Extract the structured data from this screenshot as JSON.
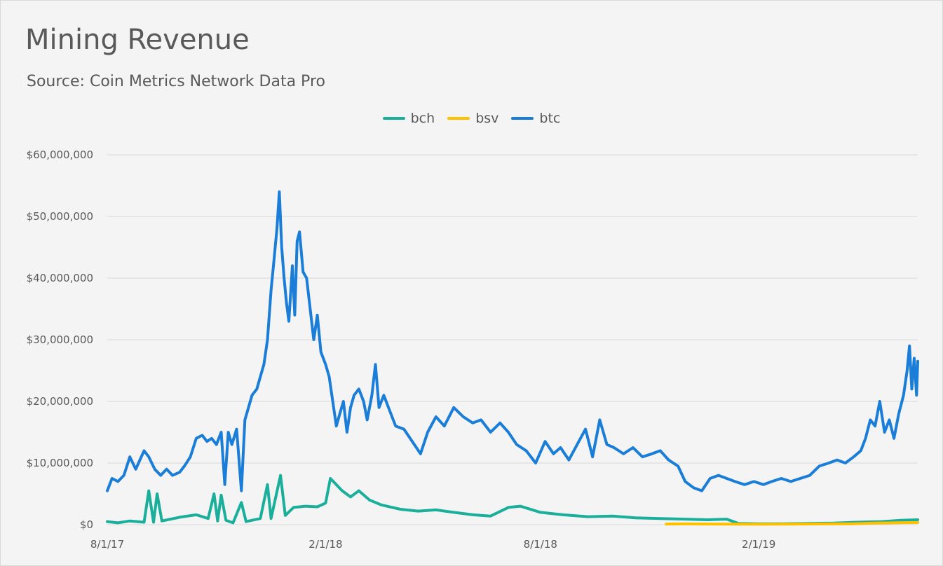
{
  "chart_data": {
    "type": "line",
    "title": "Mining Revenue",
    "subtitle": "Source:  Coin Metrics Network Data Pro",
    "xlabel": "",
    "ylabel": "",
    "x_range": [
      "2017-08-01",
      "2019-06-15"
    ],
    "ylim": [
      0,
      60000000
    ],
    "y_ticks": [
      0,
      10000000,
      20000000,
      30000000,
      40000000,
      50000000,
      60000000
    ],
    "y_tick_labels": [
      "$0",
      "$10,000,000",
      "$20,000,000",
      "$30,000,000",
      "$40,000,000",
      "$50,000,000",
      "$60,000,000"
    ],
    "x_ticks": [
      "2017-08-01",
      "2018-02-01",
      "2018-08-01",
      "2019-02-01"
    ],
    "x_tick_labels": [
      "8/1/17",
      "2/1/18",
      "8/1/18",
      "2/1/19"
    ],
    "grid": true,
    "legend_position": "top-center",
    "series": [
      {
        "name": "bch",
        "color": "#1aaf9b",
        "points": [
          [
            "2017-08-01",
            500000
          ],
          [
            "2017-08-10",
            300000
          ],
          [
            "2017-08-20",
            600000
          ],
          [
            "2017-09-01",
            400000
          ],
          [
            "2017-09-05",
            5500000
          ],
          [
            "2017-09-09",
            400000
          ],
          [
            "2017-09-12",
            5000000
          ],
          [
            "2017-09-16",
            600000
          ],
          [
            "2017-10-01",
            1200000
          ],
          [
            "2017-10-15",
            1600000
          ],
          [
            "2017-10-25",
            1000000
          ],
          [
            "2017-10-30",
            5000000
          ],
          [
            "2017-11-02",
            600000
          ],
          [
            "2017-11-05",
            4800000
          ],
          [
            "2017-11-09",
            700000
          ],
          [
            "2017-11-15",
            300000
          ],
          [
            "2017-11-22",
            3600000
          ],
          [
            "2017-11-26",
            500000
          ],
          [
            "2017-12-08",
            1000000
          ],
          [
            "2017-12-14",
            6500000
          ],
          [
            "2017-12-17",
            1000000
          ],
          [
            "2017-12-25",
            8000000
          ],
          [
            "2017-12-29",
            1500000
          ],
          [
            "2018-01-05",
            2800000
          ],
          [
            "2018-01-15",
            3000000
          ],
          [
            "2018-01-25",
            2900000
          ],
          [
            "2018-02-01",
            3500000
          ],
          [
            "2018-02-05",
            7500000
          ],
          [
            "2018-02-15",
            5500000
          ],
          [
            "2018-02-22",
            4500000
          ],
          [
            "2018-03-01",
            5500000
          ],
          [
            "2018-03-10",
            4000000
          ],
          [
            "2018-03-20",
            3200000
          ],
          [
            "2018-04-05",
            2500000
          ],
          [
            "2018-04-20",
            2200000
          ],
          [
            "2018-05-05",
            2400000
          ],
          [
            "2018-05-20",
            2000000
          ],
          [
            "2018-06-05",
            1600000
          ],
          [
            "2018-06-20",
            1400000
          ],
          [
            "2018-07-05",
            2800000
          ],
          [
            "2018-07-15",
            3000000
          ],
          [
            "2018-08-01",
            2000000
          ],
          [
            "2018-08-20",
            1600000
          ],
          [
            "2018-09-10",
            1300000
          ],
          [
            "2018-10-01",
            1400000
          ],
          [
            "2018-10-20",
            1100000
          ],
          [
            "2018-11-10",
            1000000
          ],
          [
            "2018-12-01",
            900000
          ],
          [
            "2018-12-20",
            800000
          ],
          [
            "2019-01-05",
            900000
          ],
          [
            "2019-01-15",
            200000
          ],
          [
            "2019-02-01",
            150000
          ],
          [
            "2019-02-20",
            150000
          ],
          [
            "2019-03-15",
            200000
          ],
          [
            "2019-04-05",
            250000
          ],
          [
            "2019-04-25",
            400000
          ],
          [
            "2019-05-15",
            500000
          ],
          [
            "2019-06-01",
            700000
          ],
          [
            "2019-06-15",
            800000
          ]
        ]
      },
      {
        "name": "bsv",
        "color": "#ffc000",
        "points": [
          [
            "2018-11-15",
            100000
          ],
          [
            "2018-12-01",
            120000
          ],
          [
            "2018-12-20",
            100000
          ],
          [
            "2019-01-10",
            80000
          ],
          [
            "2019-02-01",
            70000
          ],
          [
            "2019-02-20",
            80000
          ],
          [
            "2019-03-10",
            100000
          ],
          [
            "2019-04-01",
            120000
          ],
          [
            "2019-04-20",
            150000
          ],
          [
            "2019-05-10",
            250000
          ],
          [
            "2019-05-25",
            300000
          ],
          [
            "2019-06-15",
            350000
          ]
        ]
      },
      {
        "name": "btc",
        "color": "#1a7ed8",
        "points": [
          [
            "2017-08-01",
            5500000
          ],
          [
            "2017-08-05",
            7500000
          ],
          [
            "2017-08-10",
            7000000
          ],
          [
            "2017-08-15",
            8000000
          ],
          [
            "2017-08-20",
            11000000
          ],
          [
            "2017-08-25",
            9000000
          ],
          [
            "2017-09-01",
            12000000
          ],
          [
            "2017-09-05",
            11000000
          ],
          [
            "2017-09-10",
            9000000
          ],
          [
            "2017-09-15",
            8000000
          ],
          [
            "2017-09-20",
            9000000
          ],
          [
            "2017-09-25",
            8000000
          ],
          [
            "2017-10-01",
            8500000
          ],
          [
            "2017-10-05",
            9500000
          ],
          [
            "2017-10-10",
            11000000
          ],
          [
            "2017-10-15",
            14000000
          ],
          [
            "2017-10-20",
            14500000
          ],
          [
            "2017-10-24",
            13500000
          ],
          [
            "2017-10-28",
            14000000
          ],
          [
            "2017-11-01",
            13000000
          ],
          [
            "2017-11-05",
            15000000
          ],
          [
            "2017-11-08",
            6500000
          ],
          [
            "2017-11-11",
            15000000
          ],
          [
            "2017-11-14",
            13000000
          ],
          [
            "2017-11-18",
            15500000
          ],
          [
            "2017-11-22",
            5500000
          ],
          [
            "2017-11-25",
            17000000
          ],
          [
            "2017-11-28",
            19000000
          ],
          [
            "2017-12-01",
            21000000
          ],
          [
            "2017-12-05",
            22000000
          ],
          [
            "2017-12-08",
            24000000
          ],
          [
            "2017-12-11",
            26000000
          ],
          [
            "2017-12-14",
            30000000
          ],
          [
            "2017-12-17",
            38000000
          ],
          [
            "2017-12-19",
            42000000
          ],
          [
            "2017-12-22",
            48000000
          ],
          [
            "2017-12-24",
            54000000
          ],
          [
            "2017-12-26",
            45000000
          ],
          [
            "2017-12-28",
            40000000
          ],
          [
            "2017-12-30",
            36000000
          ],
          [
            "2018-01-01",
            33000000
          ],
          [
            "2018-01-04",
            42000000
          ],
          [
            "2018-01-06",
            34000000
          ],
          [
            "2018-01-08",
            46000000
          ],
          [
            "2018-01-10",
            47500000
          ],
          [
            "2018-01-13",
            41000000
          ],
          [
            "2018-01-16",
            40000000
          ],
          [
            "2018-01-19",
            35000000
          ],
          [
            "2018-01-22",
            30000000
          ],
          [
            "2018-01-25",
            34000000
          ],
          [
            "2018-01-28",
            28000000
          ],
          [
            "2018-02-01",
            26000000
          ],
          [
            "2018-02-04",
            24000000
          ],
          [
            "2018-02-07",
            20000000
          ],
          [
            "2018-02-10",
            16000000
          ],
          [
            "2018-02-13",
            18000000
          ],
          [
            "2018-02-16",
            20000000
          ],
          [
            "2018-02-19",
            15000000
          ],
          [
            "2018-02-22",
            19000000
          ],
          [
            "2018-02-25",
            21000000
          ],
          [
            "2018-03-01",
            22000000
          ],
          [
            "2018-03-05",
            20000000
          ],
          [
            "2018-03-08",
            17000000
          ],
          [
            "2018-03-12",
            21000000
          ],
          [
            "2018-03-15",
            26000000
          ],
          [
            "2018-03-18",
            19000000
          ],
          [
            "2018-03-22",
            21000000
          ],
          [
            "2018-03-26",
            19000000
          ],
          [
            "2018-04-01",
            16000000
          ],
          [
            "2018-04-08",
            15500000
          ],
          [
            "2018-04-15",
            13500000
          ],
          [
            "2018-04-22",
            11500000
          ],
          [
            "2018-04-28",
            15000000
          ],
          [
            "2018-05-05",
            17500000
          ],
          [
            "2018-05-12",
            16000000
          ],
          [
            "2018-05-20",
            19000000
          ],
          [
            "2018-05-28",
            17500000
          ],
          [
            "2018-06-05",
            16500000
          ],
          [
            "2018-06-12",
            17000000
          ],
          [
            "2018-06-20",
            15000000
          ],
          [
            "2018-06-28",
            16500000
          ],
          [
            "2018-07-05",
            15000000
          ],
          [
            "2018-07-12",
            13000000
          ],
          [
            "2018-07-20",
            12000000
          ],
          [
            "2018-07-28",
            10000000
          ],
          [
            "2018-08-05",
            13500000
          ],
          [
            "2018-08-12",
            11500000
          ],
          [
            "2018-08-18",
            12500000
          ],
          [
            "2018-08-25",
            10500000
          ],
          [
            "2018-09-01",
            13000000
          ],
          [
            "2018-09-08",
            15500000
          ],
          [
            "2018-09-14",
            11000000
          ],
          [
            "2018-09-20",
            17000000
          ],
          [
            "2018-09-26",
            13000000
          ],
          [
            "2018-10-02",
            12500000
          ],
          [
            "2018-10-10",
            11500000
          ],
          [
            "2018-10-18",
            12500000
          ],
          [
            "2018-10-26",
            11000000
          ],
          [
            "2018-11-03",
            11500000
          ],
          [
            "2018-11-10",
            12000000
          ],
          [
            "2018-11-17",
            10500000
          ],
          [
            "2018-11-25",
            9500000
          ],
          [
            "2018-12-01",
            7000000
          ],
          [
            "2018-12-08",
            6000000
          ],
          [
            "2018-12-15",
            5500000
          ],
          [
            "2018-12-22",
            7500000
          ],
          [
            "2018-12-29",
            8000000
          ],
          [
            "2019-01-05",
            7500000
          ],
          [
            "2019-01-12",
            7000000
          ],
          [
            "2019-01-20",
            6500000
          ],
          [
            "2019-01-28",
            7000000
          ],
          [
            "2019-02-05",
            6500000
          ],
          [
            "2019-02-12",
            7000000
          ],
          [
            "2019-02-20",
            7500000
          ],
          [
            "2019-02-28",
            7000000
          ],
          [
            "2019-03-08",
            7500000
          ],
          [
            "2019-03-16",
            8000000
          ],
          [
            "2019-03-24",
            9500000
          ],
          [
            "2019-04-01",
            10000000
          ],
          [
            "2019-04-08",
            10500000
          ],
          [
            "2019-04-15",
            10000000
          ],
          [
            "2019-04-22",
            11000000
          ],
          [
            "2019-04-28",
            12000000
          ],
          [
            "2019-05-02",
            14000000
          ],
          [
            "2019-05-06",
            17000000
          ],
          [
            "2019-05-10",
            16000000
          ],
          [
            "2019-05-14",
            20000000
          ],
          [
            "2019-05-18",
            15000000
          ],
          [
            "2019-05-22",
            17000000
          ],
          [
            "2019-05-26",
            14000000
          ],
          [
            "2019-05-30",
            18000000
          ],
          [
            "2019-06-03",
            21000000
          ],
          [
            "2019-06-06",
            25000000
          ],
          [
            "2019-06-08",
            29000000
          ],
          [
            "2019-06-10",
            22000000
          ],
          [
            "2019-06-12",
            27000000
          ],
          [
            "2019-06-14",
            21000000
          ],
          [
            "2019-06-15",
            26500000
          ]
        ]
      }
    ]
  }
}
